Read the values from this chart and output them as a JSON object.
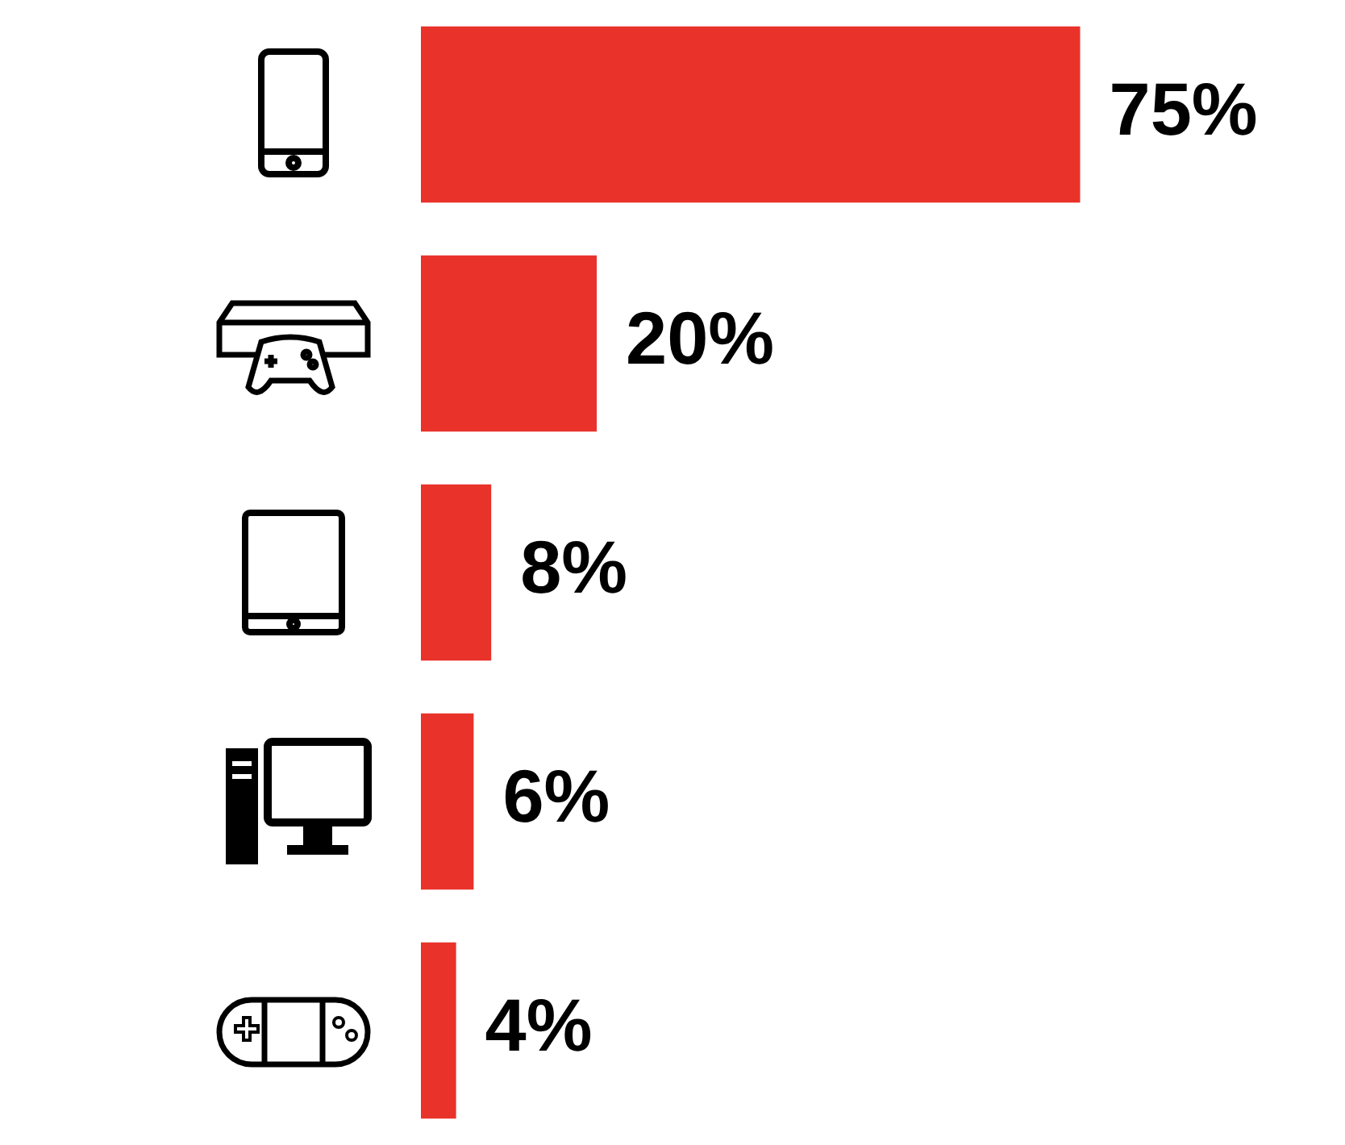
{
  "chart_data": {
    "type": "bar",
    "orientation": "horizontal",
    "categories": [
      null,
      null,
      null,
      null,
      null
    ],
    "values": [
      75,
      20,
      8,
      6,
      4
    ],
    "value_labels": [
      "75%",
      "20%",
      "8%",
      "6%",
      "4%"
    ],
    "color": "#e8322a",
    "grid": false,
    "legend": false,
    "tick_labels": false
  }
}
